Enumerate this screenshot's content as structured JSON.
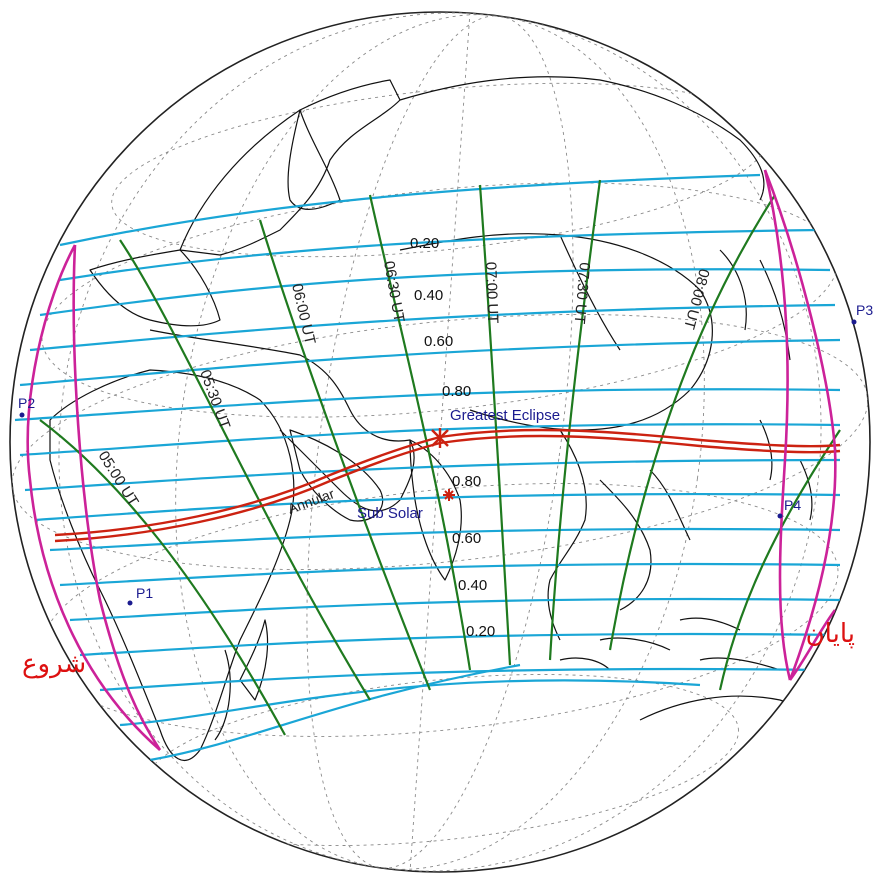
{
  "map": {
    "projection": "orthographic",
    "colors": {
      "magnitude_line": "#1aa6d6",
      "time_line": "#1f7a1f",
      "limit_curve": "#cc2299",
      "central_path": "#cc2211",
      "coastline": "#111111",
      "graticule": "#888888",
      "point_marker": "#1b1b8f",
      "arabic_text": "#dd1111"
    },
    "magnitude_labels": {
      "north": [
        "0.20",
        "0.40",
        "0.60",
        "0.80"
      ],
      "south": [
        "0.80",
        "0.60",
        "0.40",
        "0.20"
      ]
    },
    "time_labels": [
      "05:00 UT",
      "05:30 UT",
      "06:00 UT",
      "06:30 UT",
      "07:00 UT",
      "07:30 UT",
      "08:00 UT"
    ],
    "contact_points": [
      "P1",
      "P2",
      "P3",
      "P4"
    ],
    "annotations": {
      "greatest_eclipse": "Greatest Eclipse",
      "sub_solar": "Sub Solar",
      "annular": "Annular"
    },
    "arabic_labels": {
      "left": "شروع",
      "right": "پایان"
    }
  }
}
